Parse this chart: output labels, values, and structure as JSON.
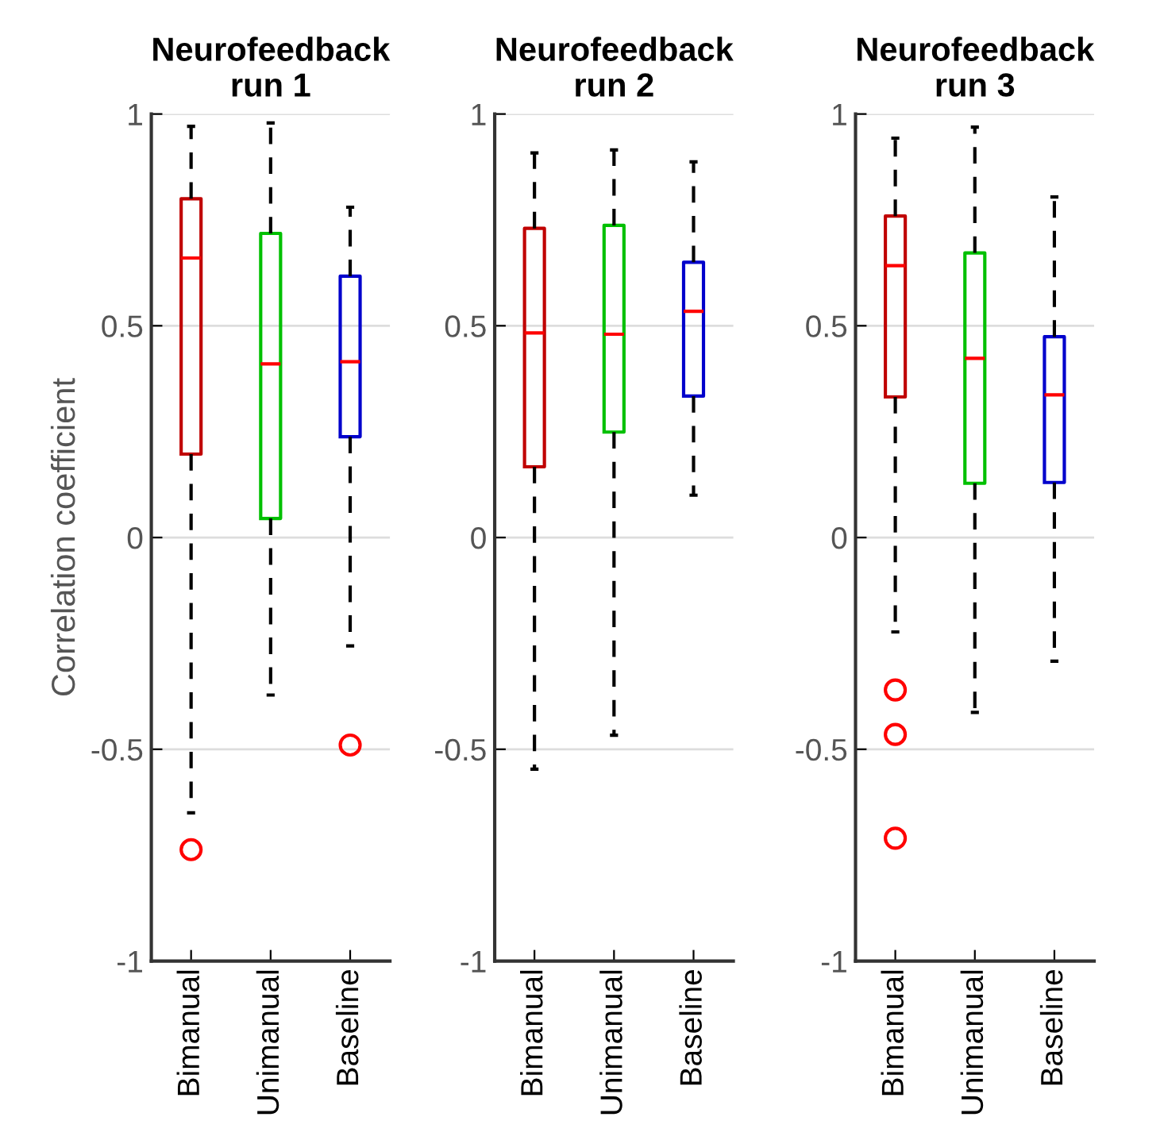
{
  "chart_data": [
    {
      "type": "box",
      "title": "Neurofeedback\nrun 1",
      "ylabel": "Correlation coefficient",
      "categories": [
        "Bimanual",
        "Unimanual",
        "Baseline"
      ],
      "colors": [
        "#c00000",
        "#00c000",
        "#0000cc"
      ],
      "ylim": [
        -1,
        1
      ],
      "yticks": [
        -1,
        -0.5,
        0,
        0.5,
        1
      ],
      "grid": "y",
      "boxes": [
        {
          "low": -0.65,
          "q1": 0.197,
          "median": 0.66,
          "q3": 0.8,
          "high": 0.971,
          "outliers": [
            -0.737
          ]
        },
        {
          "low": -0.372,
          "q1": 0.045,
          "median": 0.41,
          "q3": 0.718,
          "high": 0.979
        },
        {
          "low": -0.256,
          "q1": 0.238,
          "median": 0.415,
          "q3": 0.617,
          "high": 0.78,
          "outliers": [
            -0.49
          ]
        }
      ]
    },
    {
      "type": "box",
      "title": "Neurofeedback\nrun 2",
      "categories": [
        "Bimanual",
        "Unimanual",
        "Baseline"
      ],
      "colors": [
        "#c00000",
        "#00c000",
        "#0000cc"
      ],
      "ylim": [
        -1,
        1
      ],
      "yticks": [
        -1,
        -0.5,
        0,
        0.5,
        1
      ],
      "grid": "y",
      "boxes": [
        {
          "low": -0.547,
          "q1": 0.167,
          "median": 0.483,
          "q3": 0.73,
          "high": 0.908
        },
        {
          "low": -0.467,
          "q1": 0.249,
          "median": 0.48,
          "q3": 0.737,
          "high": 0.915
        },
        {
          "low": 0.1,
          "q1": 0.334,
          "median": 0.534,
          "q3": 0.65,
          "high": 0.887
        }
      ]
    },
    {
      "type": "box",
      "title": "Neurofeedback\nrun 3",
      "categories": [
        "Bimanual",
        "Unimanual",
        "Baseline"
      ],
      "colors": [
        "#c00000",
        "#00c000",
        "#0000cc"
      ],
      "ylim": [
        -1,
        1
      ],
      "yticks": [
        -1,
        -0.5,
        0,
        0.5,
        1
      ],
      "grid": "y",
      "boxes": [
        {
          "low": -0.223,
          "q1": 0.332,
          "median": 0.642,
          "q3": 0.759,
          "high": 0.943,
          "outliers": [
            -0.36,
            -0.465,
            -0.71
          ]
        },
        {
          "low": -0.413,
          "q1": 0.128,
          "median": 0.423,
          "q3": 0.672,
          "high": 0.969
        },
        {
          "low": -0.292,
          "q1": 0.13,
          "median": 0.337,
          "q3": 0.474,
          "high": 0.804
        }
      ]
    }
  ]
}
